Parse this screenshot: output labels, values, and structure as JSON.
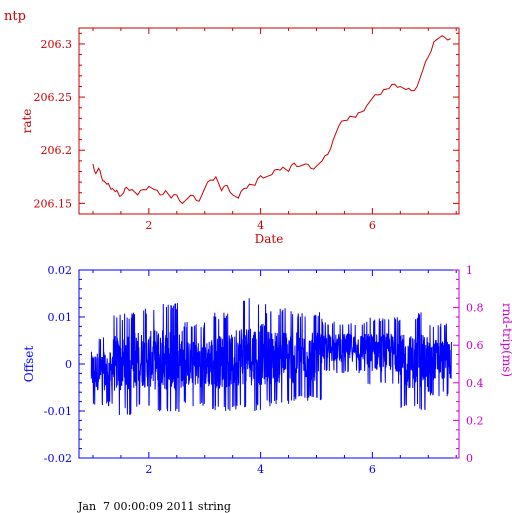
{
  "page_title": "ntp",
  "footer": "Jan  7 00:00:09 2011 string",
  "colors": {
    "red": "#cc0000",
    "blue": "#0000ff",
    "magenta": "#cc00cc",
    "black": "#000000"
  },
  "chart_data": [
    {
      "id": "rate",
      "type": "line",
      "title": "",
      "xlabel": "Date",
      "ylabel": "rate",
      "xlim": [
        0.75,
        7.55
      ],
      "ylim": [
        206.14,
        206.315
      ],
      "x_ticks": [
        2,
        4,
        6
      ],
      "x_tick_labels": [
        "2",
        "4",
        "6"
      ],
      "y_ticks": [
        206.15,
        206.2,
        206.25,
        206.3
      ],
      "y_tick_labels": [
        "206.15",
        "206.2",
        "206.25",
        "206.3"
      ],
      "series": [
        {
          "color": "#cc0000",
          "x": [
            1.0,
            1.05,
            1.1,
            1.15,
            1.2,
            1.25,
            1.3,
            1.35,
            1.4,
            1.45,
            1.5,
            1.55,
            1.6,
            1.7,
            1.8,
            1.9,
            2.0,
            2.1,
            2.2,
            2.3,
            2.4,
            2.5,
            2.6,
            2.7,
            2.8,
            2.9,
            3.0,
            3.1,
            3.2,
            3.3,
            3.4,
            3.5,
            3.6,
            3.7,
            3.8,
            3.9,
            4.0,
            4.1,
            4.2,
            4.3,
            4.4,
            4.5,
            4.6,
            4.7,
            4.8,
            4.9,
            5.0,
            5.1,
            5.2,
            5.3,
            5.4,
            5.5,
            5.6,
            5.7,
            5.8,
            5.9,
            6.0,
            6.1,
            6.2,
            6.3,
            6.4,
            6.5,
            6.6,
            6.7,
            6.8,
            6.9,
            7.0,
            7.1,
            7.2,
            7.3,
            7.4
          ],
          "y": [
            206.187,
            206.178,
            206.183,
            206.175,
            206.171,
            206.168,
            206.166,
            206.164,
            206.161,
            206.16,
            206.157,
            206.16,
            206.165,
            206.163,
            206.158,
            206.163,
            206.166,
            206.163,
            206.158,
            206.162,
            206.155,
            206.158,
            206.15,
            206.155,
            206.157,
            206.152,
            206.164,
            206.172,
            206.175,
            206.162,
            206.167,
            206.158,
            206.155,
            206.164,
            206.168,
            206.167,
            206.176,
            206.175,
            206.177,
            206.182,
            206.184,
            206.18,
            206.188,
            206.185,
            206.187,
            206.183,
            206.185,
            206.19,
            206.196,
            206.21,
            206.223,
            206.228,
            206.232,
            206.231,
            206.236,
            206.242,
            206.249,
            206.252,
            206.257,
            206.258,
            206.262,
            206.26,
            206.257,
            206.256,
            206.26,
            206.275,
            206.288,
            206.302,
            206.306,
            206.306,
            206.305
          ]
        }
      ]
    },
    {
      "id": "offset",
      "type": "line",
      "title": "",
      "xlabel": "",
      "ylabel": "Offset",
      "y2label": "rnd-trip(ms)",
      "xlim": [
        0.75,
        7.55
      ],
      "ylim": [
        -0.02,
        0.02
      ],
      "y2lim": [
        0,
        1
      ],
      "x_ticks": [
        2,
        4,
        6
      ],
      "x_tick_labels": [
        "2",
        "4",
        "6"
      ],
      "y_ticks": [
        -0.02,
        -0.01,
        0,
        0.01,
        0.02
      ],
      "y_tick_labels": [
        "-0.02",
        "-0.01",
        "0",
        "0.01",
        "0.02"
      ],
      "y2_ticks": [
        0,
        0.2,
        0.4,
        0.6,
        0.8,
        1
      ],
      "y2_tick_labels": [
        "0",
        "0.2",
        "0.4",
        "0.6",
        "0.8",
        "1"
      ],
      "series": [
        {
          "color": "#0000ff",
          "x_range": [
            0.97,
            7.42
          ],
          "y_range": [
            -0.012,
            0.014
          ],
          "segments": [
            {
              "x": [
                0.97,
                1.35
              ],
              "low": -0.009,
              "high": 0.006
            },
            {
              "x": [
                1.35,
                1.75
              ],
              "low": -0.011,
              "high": 0.011
            },
            {
              "x": [
                1.75,
                2.1
              ],
              "low": -0.01,
              "high": 0.012
            },
            {
              "x": [
                2.1,
                2.6
              ],
              "low": -0.011,
              "high": 0.013
            },
            {
              "x": [
                2.6,
                3.05
              ],
              "low": -0.009,
              "high": 0.009
            },
            {
              "x": [
                3.05,
                3.55
              ],
              "low": -0.01,
              "high": 0.011
            },
            {
              "x": [
                3.55,
                4.1
              ],
              "low": -0.01,
              "high": 0.014
            },
            {
              "x": [
                4.1,
                4.6
              ],
              "low": -0.009,
              "high": 0.012
            },
            {
              "x": [
                4.6,
                5.1
              ],
              "low": -0.008,
              "high": 0.011
            },
            {
              "x": [
                5.1,
                5.9
              ],
              "low": -0.002,
              "high": 0.009
            },
            {
              "x": [
                5.9,
                6.5
              ],
              "low": -0.005,
              "high": 0.01
            },
            {
              "x": [
                6.5,
                7.0
              ],
              "low": -0.01,
              "high": 0.011
            },
            {
              "x": [
                7.0,
                7.42
              ],
              "low": -0.007,
              "high": 0.009
            }
          ]
        }
      ]
    }
  ]
}
